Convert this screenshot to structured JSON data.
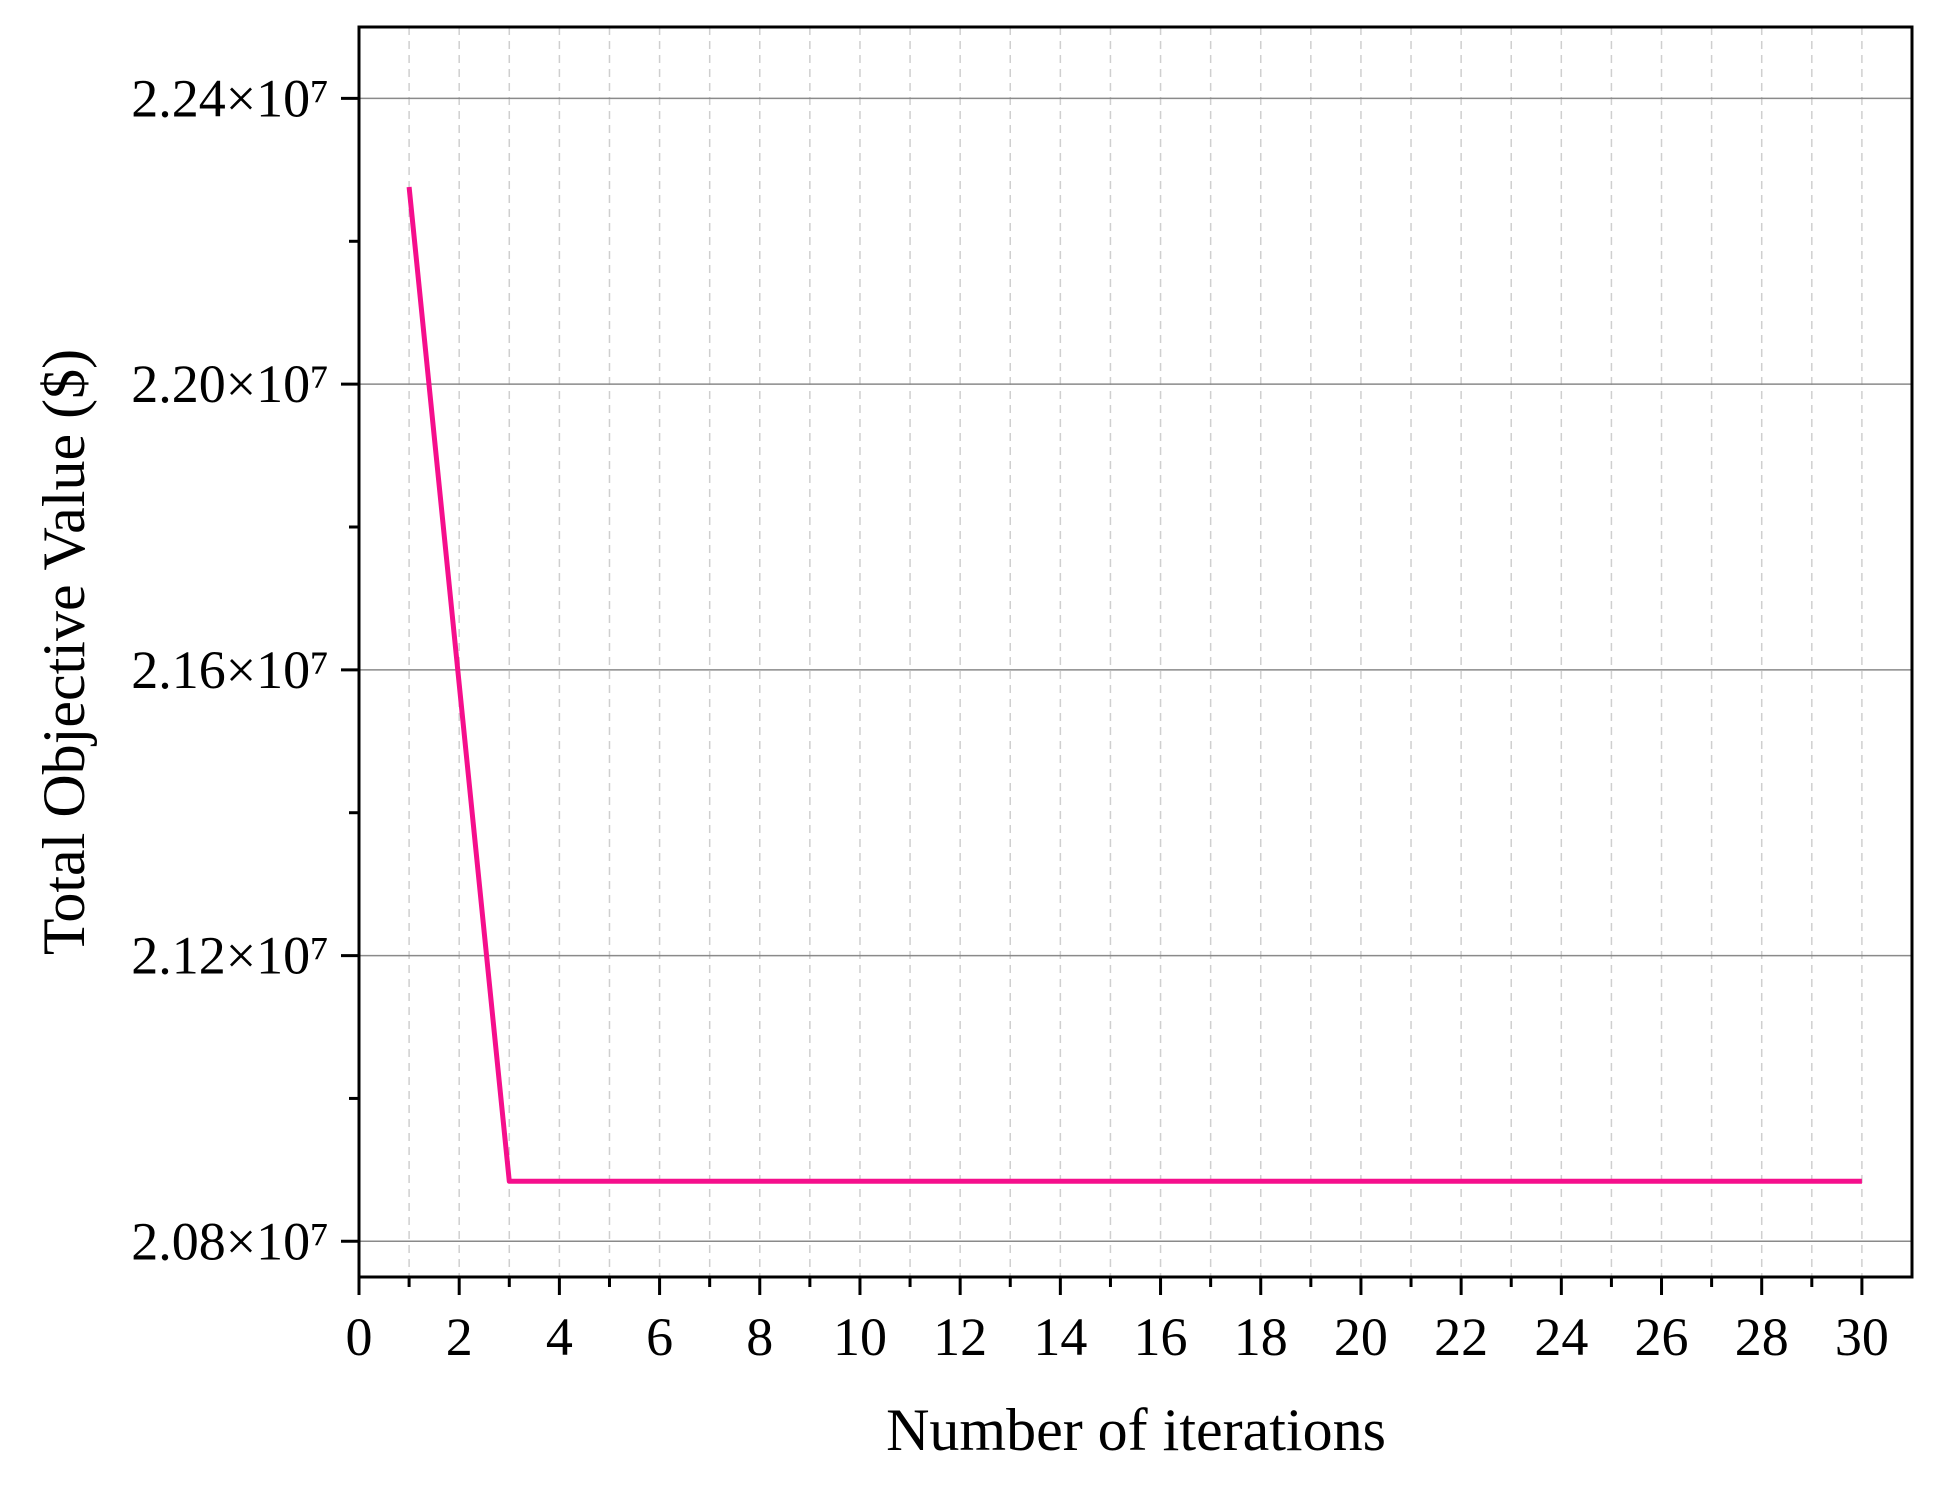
{
  "chart_data": {
    "type": "line",
    "x_label": "Number of iterations",
    "y_label": "Total Objective Value ($)",
    "x": [
      1,
      2,
      3,
      4,
      5,
      6,
      7,
      8,
      9,
      10,
      11,
      12,
      13,
      14,
      15,
      16,
      17,
      18,
      19,
      20,
      21,
      22,
      23,
      24,
      25,
      26,
      27,
      28,
      29,
      30
    ],
    "series": [
      {
        "color": "#f50f8c",
        "values": [
          22276000,
          21580000,
          20884000,
          20884000,
          20884000,
          20884000,
          20884000,
          20884000,
          20884000,
          20884000,
          20884000,
          20884000,
          20884000,
          20884000,
          20884000,
          20884000,
          20884000,
          20884000,
          20884000,
          20884000,
          20884000,
          20884000,
          20884000,
          20884000,
          20884000,
          20884000,
          20884000,
          20884000,
          20884000,
          20884000
        ]
      }
    ],
    "xlim": [
      0,
      31
    ],
    "ylim": [
      20750000,
      22500000
    ],
    "xticks": [
      0,
      2,
      4,
      6,
      8,
      10,
      12,
      14,
      16,
      18,
      20,
      22,
      24,
      26,
      28,
      30
    ],
    "xminorticks": [
      1,
      3,
      5,
      7,
      9,
      11,
      13,
      15,
      17,
      19,
      21,
      23,
      25,
      27,
      29
    ],
    "yticks": [
      {
        "value": 20800000,
        "label": "2.08×10⁷"
      },
      {
        "value": 21200000,
        "label": "2.12×10⁷"
      },
      {
        "value": 21600000,
        "label": "2.16×10⁷"
      },
      {
        "value": 22000000,
        "label": "2.20×10⁷"
      },
      {
        "value": 22400000,
        "label": "2.24×10⁷"
      }
    ],
    "yminorticks": [
      21000000,
      21400000,
      21800000,
      22200000
    ],
    "grid": true
  }
}
